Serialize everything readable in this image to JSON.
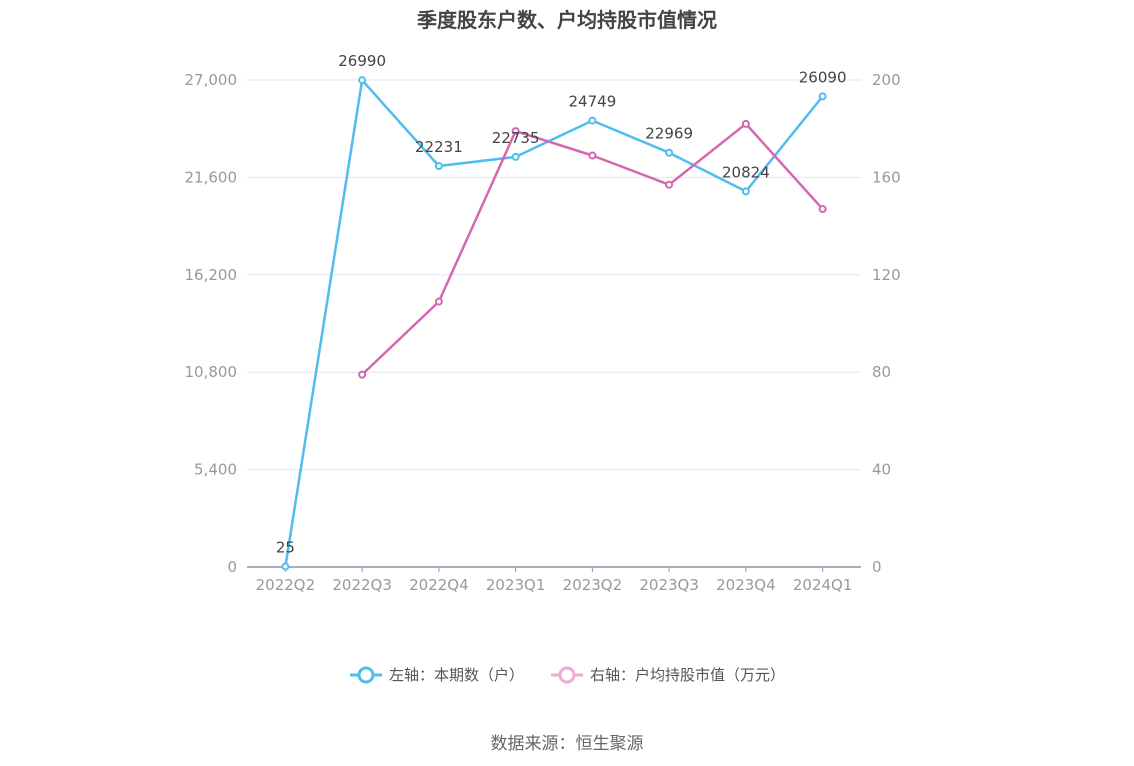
{
  "chart_data": {
    "type": "line",
    "title": "季度股东户数、户均持股市值情况",
    "categories": [
      "2022Q2",
      "2022Q3",
      "2022Q4",
      "2023Q1",
      "2023Q2",
      "2023Q3",
      "2023Q4",
      "2024Q1"
    ],
    "left_axis": {
      "ylim": [
        0,
        27000
      ],
      "ticks": [
        "0",
        "5,400",
        "10,800",
        "16,200",
        "21,600",
        "27,000"
      ],
      "tick_values": [
        0,
        5400,
        10800,
        16200,
        21600,
        27000
      ]
    },
    "right_axis": {
      "ylim": [
        0,
        200
      ],
      "ticks": [
        "0",
        "40",
        "80",
        "120",
        "160",
        "200"
      ],
      "tick_values": [
        0,
        40,
        80,
        120,
        160,
        200
      ]
    },
    "series": [
      {
        "name": "左轴：本期数（户）",
        "axis": "left",
        "color": "#4fbdee",
        "values": [
          25,
          26990,
          22231,
          22735,
          24749,
          22969,
          20824,
          26090
        ],
        "labels": [
          "25",
          "26990",
          "22231",
          "22735",
          "24749",
          "22969",
          "20824",
          "26090"
        ]
      },
      {
        "name": "右轴：户均持股市值（万元）",
        "axis": "right",
        "color": "#d467b0",
        "values": [
          null,
          79,
          109,
          179,
          169,
          157,
          182,
          147
        ]
      }
    ],
    "grid": true,
    "legend_position": "bottom"
  },
  "legend": {
    "left_label": "左轴：本期数（户）",
    "right_label": "右轴：户均持股市值（万元）",
    "left_color": "#4fbdee",
    "right_color": "#f0a9d4"
  },
  "source": "数据来源：恒生聚源"
}
